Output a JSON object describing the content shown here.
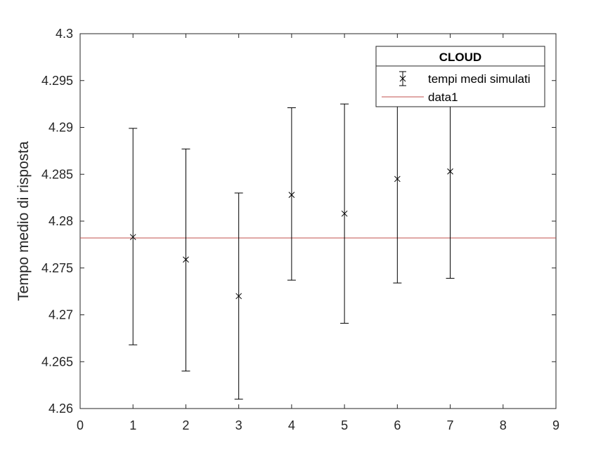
{
  "chart_data": {
    "type": "scatter",
    "title": "",
    "xlabel": "",
    "ylabel": "Tempo medio di risposta",
    "xlim": [
      0,
      9
    ],
    "ylim": [
      4.26,
      4.3
    ],
    "x_ticks": [
      0,
      1,
      2,
      3,
      4,
      5,
      6,
      7,
      8,
      9
    ],
    "y_ticks": [
      4.26,
      4.265,
      4.27,
      4.275,
      4.28,
      4.285,
      4.29,
      4.295,
      4.3
    ],
    "y_tick_labels": [
      "4.26",
      "4.265",
      "4.27",
      "4.275",
      "4.28",
      "4.285",
      "4.29",
      "4.295",
      "4.3"
    ],
    "grid": false,
    "legend": {
      "title": "CLOUD",
      "position": "top-right",
      "entries": [
        "tempi medi simulati",
        "data1"
      ]
    },
    "series": [
      {
        "name": "tempi medi simulati",
        "kind": "errorbar",
        "marker": "x",
        "color": "#000000",
        "x": [
          1,
          2,
          3,
          4,
          5,
          6,
          7
        ],
        "y": [
          4.2783,
          4.2759,
          4.272,
          4.2828,
          4.2808,
          4.2845,
          4.2853
        ],
        "lower": [
          4.2668,
          4.264,
          4.261,
          4.2737,
          4.2691,
          4.2734,
          4.2739
        ],
        "upper": [
          4.2899,
          4.2877,
          4.283,
          4.2921,
          4.2925,
          4.2956,
          4.2967
        ]
      },
      {
        "name": "data1",
        "kind": "hline",
        "color": "#c0504d",
        "y": 4.2782
      }
    ]
  }
}
